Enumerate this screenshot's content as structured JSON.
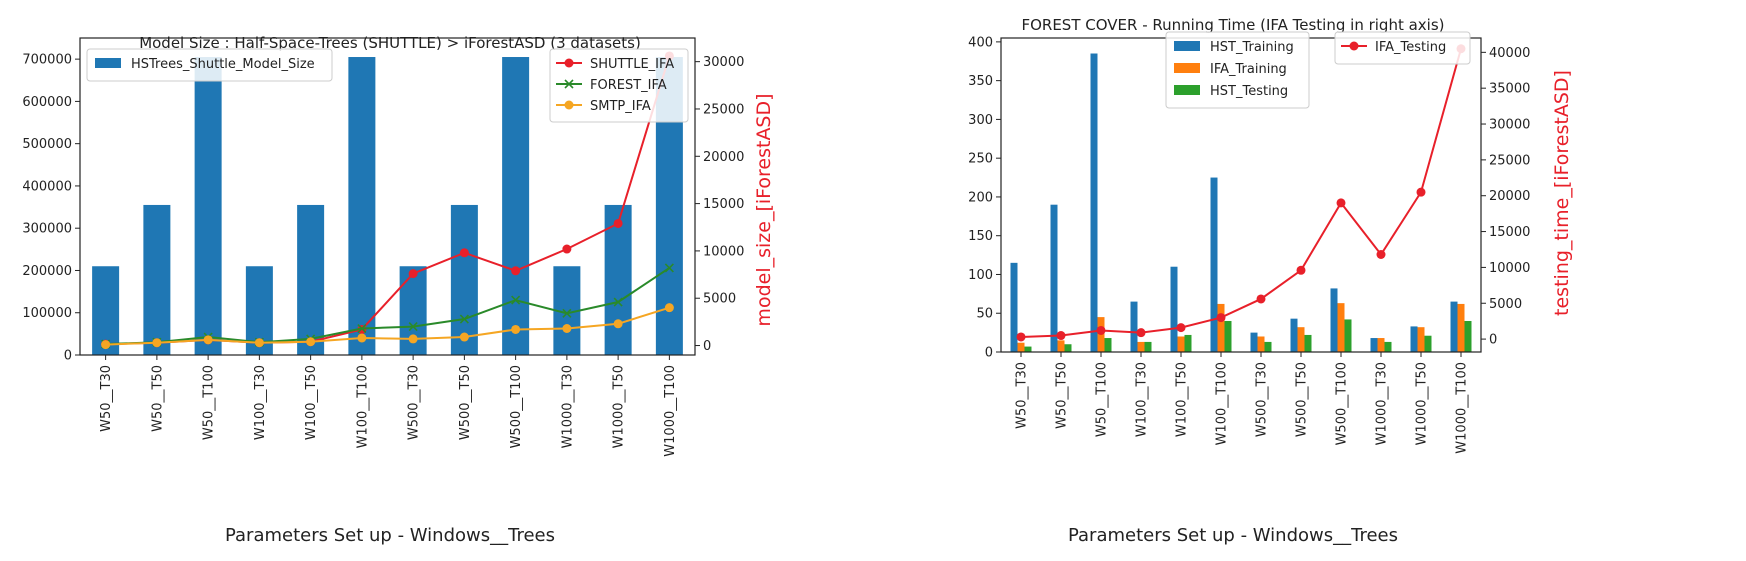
{
  "chart_data": [
    {
      "type": "bar",
      "title": "Model Size : Half-Space-Trees (SHUTTLE) > iForestASD (3 datasets)",
      "xlabel": "Parameters Set up - Windows__Trees",
      "ylabel": "",
      "y2label": "model_size_[iForestASD]",
      "categories": [
        "W50__T30",
        "W50__T50",
        "W50__T100",
        "W100__T30",
        "W100__T50",
        "W100__T100",
        "W500__T30",
        "W500__T50",
        "W500__T100",
        "W1000__T30",
        "W1000__T50",
        "W1000__T100"
      ],
      "ylim": [
        0,
        750000
      ],
      "yticks": [
        0,
        100000,
        200000,
        300000,
        400000,
        500000,
        600000,
        700000
      ],
      "y2lim": [
        -1000,
        32500
      ],
      "y2ticks": [
        0,
        5000,
        10000,
        15000,
        20000,
        25000,
        30000
      ],
      "legend_left_position": "top-left",
      "legend_right_position": "top-right",
      "bar_series": [
        {
          "name": "HSTrees_Shuttle_Model_Size",
          "color": "#1f77b4",
          "values": [
            210000,
            355000,
            705000,
            210000,
            355000,
            705000,
            210000,
            355000,
            705000,
            210000,
            355000,
            705000
          ]
        }
      ],
      "line_series": [
        {
          "name": "SHUTTLE_IFA",
          "color": "#e8202a",
          "marker": "circle",
          "values": [
            150,
            300,
            600,
            300,
            400,
            1700,
            7600,
            9800,
            7900,
            10200,
            12900,
            30600
          ]
        },
        {
          "name": "FOREST_IFA",
          "color": "#2a8a2a",
          "marker": "x",
          "values": [
            150,
            350,
            900,
            350,
            700,
            1800,
            2000,
            2800,
            4800,
            3400,
            4600,
            8200
          ]
        },
        {
          "name": "SMTP_IFA",
          "color": "#f5a623",
          "marker": "circle",
          "values": [
            100,
            300,
            600,
            300,
            400,
            800,
            700,
            900,
            1700,
            1800,
            2300,
            4000
          ]
        }
      ]
    },
    {
      "type": "bar",
      "title": "FOREST COVER - Running Time (IFA Testing in right axis)",
      "xlabel": "Parameters Set up - Windows__Trees",
      "ylabel": "",
      "y2label": "testing_time_[iForestASD]",
      "categories": [
        "W50__T30",
        "W50__T50",
        "W50__T100",
        "W100__T30",
        "W100__T50",
        "W100__T100",
        "W500__T30",
        "W500__T50",
        "W500__T100",
        "W1000__T30",
        "W1000__T50",
        "W1000__T100"
      ],
      "ylim": [
        0,
        405
      ],
      "yticks": [
        0,
        50,
        100,
        150,
        200,
        250,
        300,
        350,
        400
      ],
      "y2lim": [
        -1800,
        42000
      ],
      "y2ticks": [
        0,
        5000,
        10000,
        15000,
        20000,
        25000,
        30000,
        35000,
        40000
      ],
      "legend_left_position": "top-center",
      "legend_right_position": "top-right",
      "bar_series": [
        {
          "name": "HST_Training",
          "color": "#1f77b4",
          "values": [
            115,
            190,
            385,
            65,
            110,
            225,
            25,
            43,
            82,
            18,
            33,
            65
          ]
        },
        {
          "name": "IFA_Training",
          "color": "#ff7f0e",
          "values": [
            12,
            15,
            45,
            13,
            20,
            62,
            20,
            32,
            63,
            18,
            32,
            62
          ]
        },
        {
          "name": "HST_Testing",
          "color": "#2ca02c",
          "values": [
            7,
            10,
            18,
            13,
            22,
            40,
            13,
            22,
            42,
            13,
            21,
            40
          ]
        }
      ],
      "line_series": [
        {
          "name": "IFA_Testing",
          "color": "#e8202a",
          "marker": "circle",
          "values": [
            300,
            500,
            1200,
            900,
            1600,
            3000,
            5600,
            9600,
            19000,
            11800,
            20500,
            40500
          ]
        }
      ]
    }
  ]
}
